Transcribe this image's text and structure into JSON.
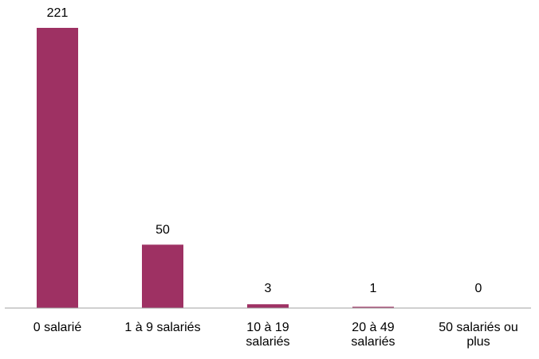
{
  "chart_data": {
    "type": "bar",
    "title": "",
    "xlabel": "",
    "ylabel": "",
    "categories": [
      [
        "0 salarié"
      ],
      [
        "1 à 9 salariés"
      ],
      [
        "10 à 19",
        "salariés"
      ],
      [
        "20 à 49",
        "salariés"
      ],
      [
        "50 salariés ou",
        "plus"
      ]
    ],
    "values": [
      221,
      50,
      3,
      1,
      0
    ],
    "ylim": [
      0,
      221
    ],
    "grid": false,
    "legend": "none",
    "bar_color": "#9e3163",
    "axis_color": "#a0a0a0"
  }
}
